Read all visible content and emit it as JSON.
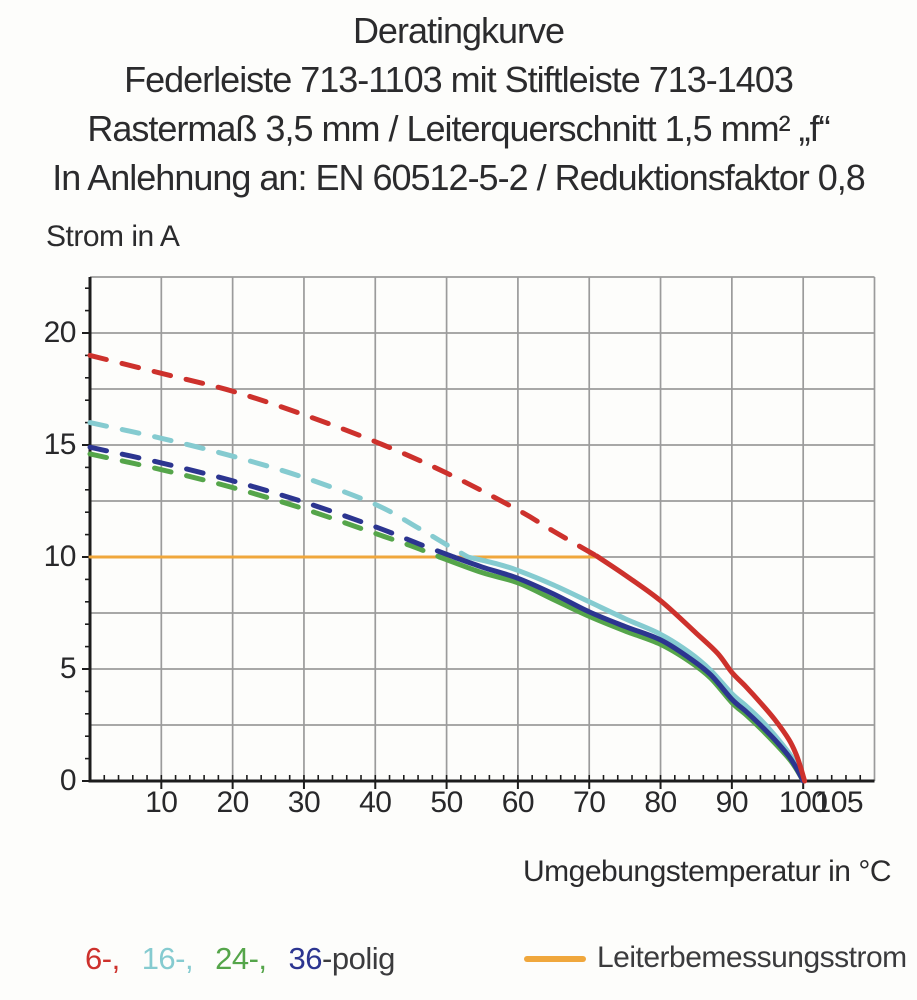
{
  "title_block": {
    "lines": [
      "Deratingkurve",
      "Federleiste 713-1103 mit Stiftleiste 713-1403",
      "Rastermaß 3,5 mm / Leiterquerschnitt 1,5 mm² „f“",
      "In Anlehnung an: EN 60512-5-2 / Reduktionsfaktor 0,8"
    ]
  },
  "axes": {
    "y_title": "Strom in A",
    "x_title": "Umgebungstemperatur in °C"
  },
  "legend": {
    "groups": [
      [
        {
          "text": "6-,",
          "color": "#cd312c"
        }
      ],
      [
        {
          "text": "16-,",
          "color": "#85cbd0"
        }
      ],
      [
        {
          "text": "24-,",
          "color": "#55a54a"
        }
      ],
      [
        {
          "text": "36",
          "color": "#2c3590"
        },
        {
          "text": "-polig",
          "color": "#3b3b3d"
        }
      ]
    ],
    "line_label": "Leiterbemessungsstrom",
    "line_color": "#f0a73c"
  },
  "chart_data": {
    "type": "line",
    "title": "Deratingkurve",
    "xlabel": "Umgebungstemperatur in °C",
    "ylabel": "Strom in A",
    "xlim": [
      0,
      110
    ],
    "ylim": [
      0,
      22.5
    ],
    "x_gridline_step": 10,
    "y_gridline_step": 2.5,
    "x_minor_tick_step": 2,
    "y_minor_tick_step": 1,
    "x_tick_labels": [
      10,
      20,
      30,
      40,
      50,
      60,
      70,
      80,
      90,
      100,
      105
    ],
    "y_tick_labels": [
      0,
      5,
      10,
      15,
      20
    ],
    "grid_color": "#9b9b9b",
    "axis_color": "#1c1c1c",
    "grid_on": true,
    "legend_position": "bottom",
    "series": [
      {
        "name": "Leiterbemessungsstrom",
        "color": "#f0a73c",
        "width": 3,
        "segments": [
          {
            "style": "solid",
            "points": [
              [
                0,
                10
              ],
              [
                71.5,
                10
              ]
            ]
          }
        ]
      },
      {
        "name": "24-polig",
        "color": "#55a54a",
        "width": 5,
        "segments": [
          {
            "style": "dashed",
            "points": [
              [
                0,
                14.6
              ],
              [
                10,
                13.9
              ],
              [
                20,
                13.1
              ],
              [
                30,
                12.15
              ],
              [
                40,
                11.05
              ],
              [
                45,
                10.5
              ],
              [
                49,
                10.0
              ]
            ]
          },
          {
            "style": "solid",
            "points": [
              [
                49,
                10.0
              ],
              [
                55,
                9.3
              ],
              [
                60,
                8.85
              ],
              [
                65,
                8.1
              ],
              [
                70,
                7.35
              ],
              [
                75,
                6.7
              ],
              [
                80,
                6.1
              ],
              [
                84,
                5.35
              ],
              [
                87,
                4.6
              ],
              [
                90,
                3.5
              ],
              [
                92,
                2.95
              ],
              [
                94,
                2.35
              ],
              [
                96,
                1.7
              ],
              [
                98,
                1.0
              ],
              [
                99,
                0.55
              ],
              [
                100,
                0
              ]
            ]
          }
        ]
      },
      {
        "name": "16-polig",
        "color": "#85cbd0",
        "width": 5,
        "segments": [
          {
            "style": "dashed",
            "points": [
              [
                0,
                16.0
              ],
              [
                10,
                15.3
              ],
              [
                20,
                14.5
              ],
              [
                30,
                13.55
              ],
              [
                40,
                12.35
              ],
              [
                46,
                11.3
              ],
              [
                50,
                10.55
              ],
              [
                53,
                10.0
              ]
            ]
          },
          {
            "style": "solid",
            "points": [
              [
                53,
                10.0
              ],
              [
                57,
                9.7
              ],
              [
                60,
                9.4
              ],
              [
                65,
                8.75
              ],
              [
                70,
                8.0
              ],
              [
                75,
                7.25
              ],
              [
                80,
                6.55
              ],
              [
                84,
                5.75
              ],
              [
                87,
                4.95
              ],
              [
                90,
                3.9
              ],
              [
                92,
                3.35
              ],
              [
                94,
                2.75
              ],
              [
                96,
                2.05
              ],
              [
                98,
                1.25
              ],
              [
                99,
                0.75
              ],
              [
                100,
                0
              ]
            ]
          }
        ]
      },
      {
        "name": "36-polig",
        "color": "#2c3590",
        "width": 5,
        "segments": [
          {
            "style": "dashed",
            "points": [
              [
                0,
                14.9
              ],
              [
                10,
                14.2
              ],
              [
                20,
                13.4
              ],
              [
                30,
                12.45
              ],
              [
                40,
                11.35
              ],
              [
                46,
                10.6
              ],
              [
                51,
                10.0
              ]
            ]
          },
          {
            "style": "solid",
            "points": [
              [
                51,
                10.0
              ],
              [
                55,
                9.55
              ],
              [
                60,
                9.05
              ],
              [
                65,
                8.35
              ],
              [
                70,
                7.55
              ],
              [
                75,
                6.9
              ],
              [
                80,
                6.3
              ],
              [
                84,
                5.5
              ],
              [
                87,
                4.75
              ],
              [
                90,
                3.65
              ],
              [
                92,
                3.1
              ],
              [
                94,
                2.5
              ],
              [
                96,
                1.85
              ],
              [
                98,
                1.1
              ],
              [
                99,
                0.6
              ],
              [
                100,
                0
              ]
            ]
          }
        ]
      },
      {
        "name": "6-polig",
        "color": "#cd312c",
        "width": 5,
        "segments": [
          {
            "style": "dashed",
            "points": [
              [
                0,
                19.0
              ],
              [
                10,
                18.2
              ],
              [
                20,
                17.4
              ],
              [
                30,
                16.35
              ],
              [
                40,
                15.15
              ],
              [
                50,
                13.75
              ],
              [
                60,
                12.1
              ],
              [
                65,
                11.15
              ],
              [
                71,
                10.05
              ]
            ]
          },
          {
            "style": "solid",
            "points": [
              [
                71,
                10.05
              ],
              [
                75,
                9.2
              ],
              [
                80,
                8.05
              ],
              [
                85,
                6.6
              ],
              [
                88,
                5.7
              ],
              [
                90,
                4.85
              ],
              [
                92,
                4.2
              ],
              [
                94,
                3.5
              ],
              [
                96,
                2.75
              ],
              [
                98,
                1.85
              ],
              [
                99,
                1.2
              ],
              [
                99.6,
                0.65
              ],
              [
                100.2,
                0
              ]
            ]
          }
        ]
      }
    ]
  }
}
